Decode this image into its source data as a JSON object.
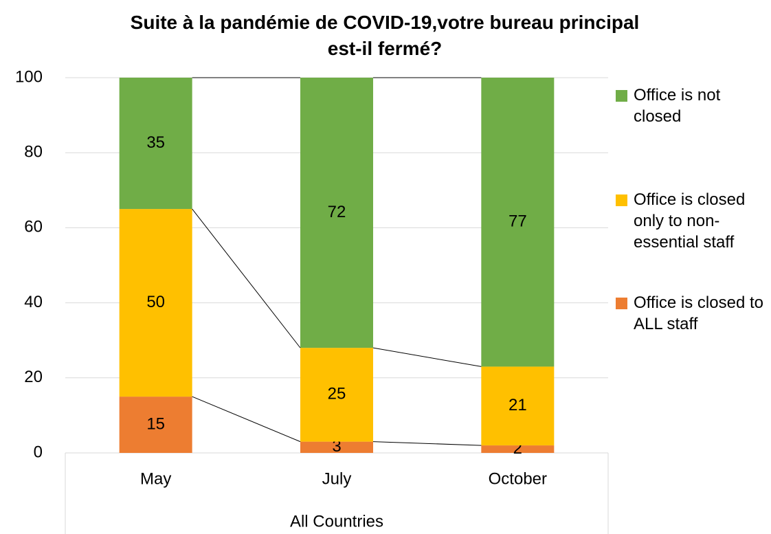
{
  "chart_data": {
    "type": "stacked_bar",
    "title": "Suite à la pandémie de COVID-19,votre bureau principal est-il fermé?",
    "categories": [
      "May",
      "July",
      "October"
    ],
    "x_group": "All Countries",
    "series": [
      {
        "name": "Office is closed to ALL staff",
        "color": "#ed7d31",
        "values": [
          15,
          3,
          2
        ]
      },
      {
        "name": "Office is closed only to non-essential staff",
        "color": "#ffc000",
        "values": [
          50,
          25,
          21
        ]
      },
      {
        "name": "Office is not closed",
        "color": "#70ad47",
        "values": [
          35,
          72,
          77
        ]
      }
    ],
    "ylim": [
      0,
      100
    ],
    "yticks": [
      0,
      20,
      40,
      60,
      80,
      100
    ],
    "grid": true,
    "legend": "right",
    "series_lines": true
  }
}
